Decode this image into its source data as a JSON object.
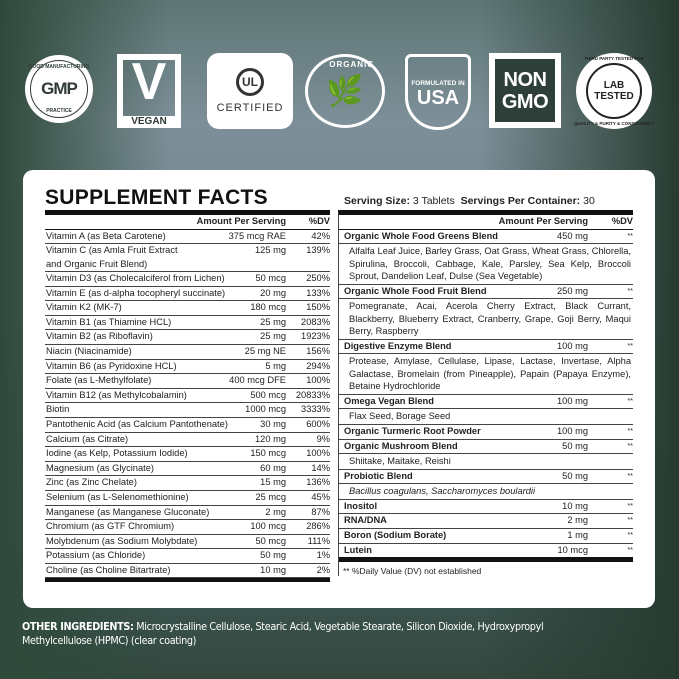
{
  "badges": {
    "gmp": {
      "top": "GOOD MANUFACTURING",
      "main": "GMP",
      "bottom": "PRACTICE"
    },
    "vegan": {
      "main": "V",
      "label": "VEGAN"
    },
    "ul": {
      "main": "UL",
      "label": "CERTIFIED"
    },
    "organic": {
      "label": "ORGANIC"
    },
    "usa": {
      "top": "FORMULATED IN",
      "main": "USA"
    },
    "nongmo": {
      "line1": "NON",
      "line2": "GMO"
    },
    "lab": {
      "top": "THIRD PARTY TESTED FOR",
      "line1": "LAB",
      "line2": "TESTED",
      "bottom": "QUALITY & PURITY & CONSISTENCY"
    }
  },
  "title": "SUPPLEMENT FACTS",
  "serving": {
    "size_label": "Serving Size:",
    "size": "3 Tablets",
    "per_label": "Servings Per Container:",
    "per": "30"
  },
  "left": {
    "headers": {
      "amount": "Amount Per Serving",
      "dv": "%DV"
    },
    "rows": [
      [
        "Vitamin A (as Beta Carotene)",
        "375 mcg RAE",
        "42%"
      ],
      [
        "Vitamin C (as Amla Fruit Extract\nand Organic Fruit Blend)",
        "125 mg",
        "139%"
      ],
      [
        "Vitamin D3 (as Cholecalciferol from Lichen)",
        "50 mcg",
        "250%"
      ],
      [
        "Vitamin E (as d-alpha tocopheryl succinate)",
        "20 mg",
        "133%"
      ],
      [
        "Vitamin K2 (MK-7)",
        "180 mcg",
        "150%"
      ],
      [
        "Vitamin B1 (as Thiamine HCL)",
        "25 mg",
        "2083%"
      ],
      [
        "Vitamin B2 (as Riboflavin)",
        "25 mg",
        "1923%"
      ],
      [
        "Niacin (Niacinamide)",
        "25 mg NE",
        "156%"
      ],
      [
        "Vitamin B6 (as Pyridoxine HCL)",
        "5 mg",
        "294%"
      ],
      [
        "Folate (as L-Methylfolate)",
        "400 mcg DFE",
        "100%"
      ],
      [
        "Vitamin B12 (as Methylcobalamin)",
        "500 mcg",
        "20833%"
      ],
      [
        "Biotin",
        "1000 mcg",
        "3333%"
      ],
      [
        "Pantothenic Acid (as Calcium Pantothenate)",
        "30 mg",
        "600%"
      ],
      [
        "Calcium (as Citrate)",
        "120 mg",
        "9%"
      ],
      [
        "Iodine (as Kelp, Potassium Iodide)",
        "150 mcg",
        "100%"
      ],
      [
        "Magnesium (as Glycinate)",
        "60 mg",
        "14%"
      ],
      [
        "Zinc (as Zinc Chelate)",
        "15 mg",
        "136%"
      ],
      [
        "Selenium (as L-Selenomethionine)",
        "25 mcg",
        "45%"
      ],
      [
        "Manganese (as Manganese Gluconate)",
        "2 mg",
        "87%"
      ],
      [
        "Chromium (as GTF Chromium)",
        "100 mcg",
        "286%"
      ],
      [
        "Molybdenum (as Sodium Molybdate)",
        "50 mcg",
        "111%"
      ],
      [
        "Potassium (as Chloride)",
        "50 mg",
        "1%"
      ],
      [
        "Choline (as Choline Bitartrate)",
        "10 mg",
        "2%"
      ]
    ]
  },
  "right": {
    "headers": {
      "amount": "Amount Per Serving",
      "dv": "%DV"
    },
    "rows": [
      {
        "name": "Organic Whole Food Greens Blend",
        "amount": "450 mg",
        "dv": "**",
        "sub": "Alfalfa Leaf Juice, Barley Grass, Oat Grass, Wheat Grass, Chlorella, Spirulina, Broccoli, Cabbage, Kale, Parsley, Sea Kelp, Broccoli Sprout, Dandelion Leaf, Dulse (Sea Vegetable)"
      },
      {
        "name": "Organic Whole Food Fruit Blend",
        "amount": "250 mg",
        "dv": "**",
        "sub": "Pomegranate, Acai, Acerola Cherry Extract, Black Currant, Blackberry, Blueberry Extract, Cranberry, Grape, Goji Berry, Maqui Berry, Raspberry"
      },
      {
        "name": "Digestive Enzyme Blend",
        "amount": "100 mg",
        "dv": "**",
        "sub": "Protease, Amylase, Cellulase, Lipase, Lactase, Invertase, Alpha Galactase, Bromelain (from Pineapple), Papain (Papaya Enzyme), Betaine Hydrochloride"
      },
      {
        "name": "Omega Vegan Blend",
        "amount": "100 mg",
        "dv": "**",
        "sub": "Flax Seed, Borage Seed"
      },
      {
        "name": "Organic Turmeric Root Powder",
        "amount": "100 mg",
        "dv": "**"
      },
      {
        "name": "Organic Mushroom Blend",
        "amount": "50 mg",
        "dv": "**",
        "sub": "Shiitake, Maitake, Reishi"
      },
      {
        "name": "Probiotic Blend",
        "amount": "50 mg",
        "dv": "**",
        "sub": "Bacillus coagulans, Saccharomyces boulardii",
        "italic": true
      },
      {
        "name": "Inositol",
        "amount": "10 mg",
        "dv": "**"
      },
      {
        "name": "RNA/DNA",
        "amount": "2 mg",
        "dv": "**"
      },
      {
        "name": "Boron (Sodium Borate)",
        "amount": "1 mg",
        "dv": "**"
      },
      {
        "name": "Lutein",
        "amount": "10 mcg",
        "dv": "**"
      }
    ],
    "note": "** %Daily Value (DV) not established"
  },
  "other": {
    "label": "OTHER INGREDIENTS:",
    "text": "Microcrystalline Cellulose, Stearic Acid, Vegetable Stearate, Silicon Dioxide, Hydroxypropyl Methylcellulose (HPMC) (clear coating)"
  }
}
